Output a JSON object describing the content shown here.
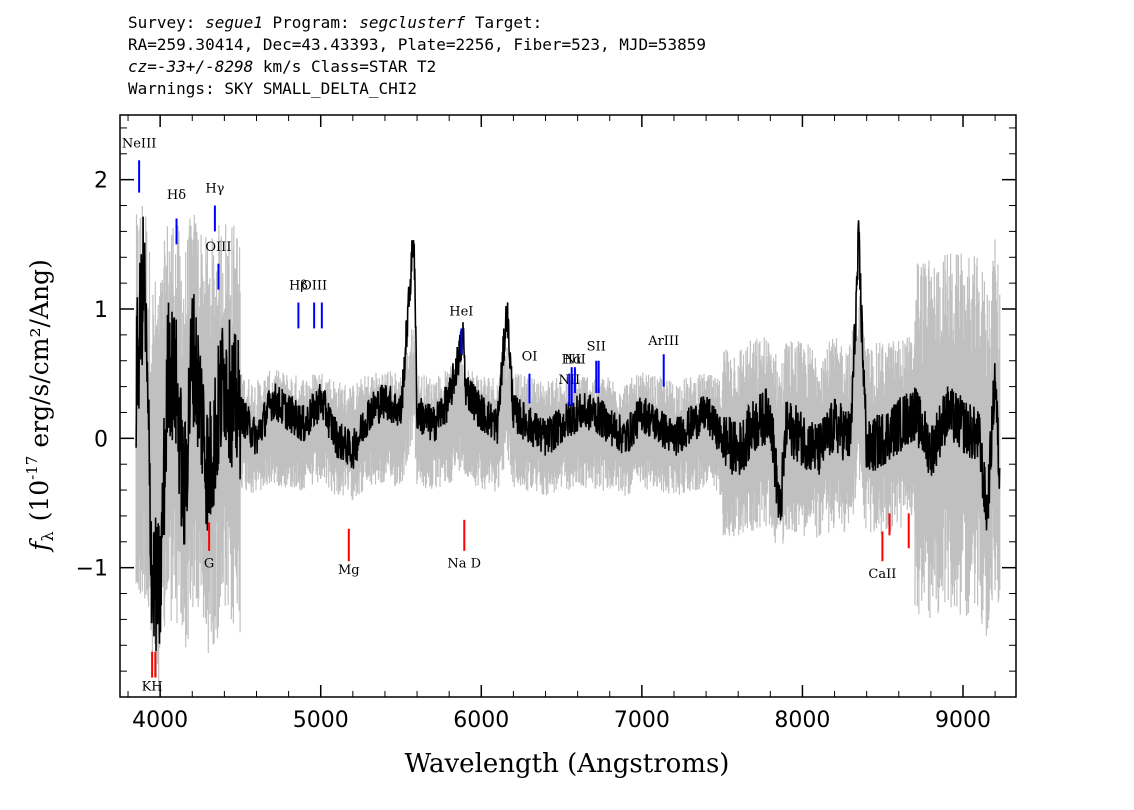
{
  "header": {
    "survey_label": "Survey:",
    "survey": "segue1",
    "program_label": "Program:",
    "program": "segclusterf",
    "target_label": "Target:",
    "line2": "RA=259.30414, Dec=43.43393, Plate=2256, Fiber=523, MJD=53859",
    "cz_label": "cz=",
    "cz_value": "-33+/-8298",
    "cz_units": "km/s",
    "class_text": "Class=STAR T2",
    "warnings": "Warnings: SKY SMALL_DELTA_CHI2"
  },
  "chart_data": {
    "type": "line",
    "xlabel": "Wavelength (Angstroms)",
    "ylabel_prefix": "f",
    "ylabel_sub": "λ",
    "ylabel_rest": "(10",
    "ylabel_exp": "-17",
    "ylabel_units": "erg/s/cm²/Ang)",
    "xlim": [
      3750,
      9330
    ],
    "ylim": [
      -2.0,
      2.5
    ],
    "xticks": [
      4000,
      5000,
      6000,
      7000,
      8000,
      9000
    ],
    "xtick_labels": [
      "4000",
      "5000",
      "6000",
      "7000",
      "8000",
      "9000"
    ],
    "yticks": [
      -1,
      0,
      1,
      2
    ],
    "ytick_labels": [
      "−1",
      "0",
      "1",
      "2"
    ],
    "colors": {
      "flux": "#000000",
      "error": "#c0c0c0",
      "emission": "#0000ff",
      "absorption": "#ff0000"
    },
    "series": [
      {
        "name": "",
        "x": [
          3850,
          3900,
          3950,
          4000,
          4050,
          4100,
          4150,
          4200,
          4250,
          4300,
          4350,
          4400,
          4450,
          4500,
          4600,
          4700,
          4800,
          4900,
          5000,
          5100,
          5200,
          5300,
          5400,
          5500,
          5580,
          5600,
          5700,
          5800,
          5890,
          5900,
          6000,
          6100,
          6160,
          6200,
          6300,
          6400,
          6500,
          6600,
          6700,
          6800,
          6900,
          7000,
          7100,
          7200,
          7300,
          7400,
          7500,
          7600,
          7700,
          7800,
          7860,
          7900,
          8000,
          8100,
          8200,
          8300,
          8350,
          8400,
          8500,
          8600,
          8700,
          8800,
          8900,
          9000,
          9100,
          9150,
          9200,
          9230
        ],
        "values": [
          0.4,
          1.3,
          -1.1,
          -1.2,
          0.6,
          0.4,
          -0.5,
          0.7,
          0.3,
          -0.3,
          0.1,
          0.5,
          0.3,
          0.2,
          0.0,
          0.3,
          0.2,
          0.1,
          0.3,
          0.0,
          -0.1,
          0.2,
          0.3,
          0.2,
          1.6,
          0.2,
          0.1,
          0.3,
          0.8,
          0.4,
          0.2,
          0.1,
          1.0,
          0.2,
          0.1,
          0.0,
          0.1,
          0.2,
          0.2,
          0.1,
          0.0,
          0.2,
          0.1,
          0.0,
          0.1,
          0.2,
          0.0,
          -0.1,
          0.1,
          0.2,
          -0.6,
          0.1,
          0.0,
          -0.1,
          0.1,
          0.0,
          1.5,
          -0.1,
          0.0,
          0.1,
          0.2,
          -0.1,
          0.2,
          0.1,
          0.0,
          -0.6,
          0.5,
          -0.4
        ]
      }
    ],
    "emission_lines": [
      {
        "label": "NeIII",
        "x": 3869,
        "y_label": 2.25,
        "y_tick": [
          1.9,
          2.15
        ]
      },
      {
        "label": "Hδ",
        "x": 4102,
        "y_label": 1.85,
        "y_tick": [
          1.5,
          1.7
        ]
      },
      {
        "label": "Hγ",
        "x": 4341,
        "y_label": 1.9,
        "y_tick": [
          1.6,
          1.8
        ]
      },
      {
        "label": "OIII",
        "x": 4363,
        "y_label": 1.45,
        "y_tick": [
          1.15,
          1.35
        ]
      },
      {
        "label": "Hβ",
        "x": 4861,
        "y_label": 1.15,
        "y_tick": [
          0.85,
          1.05
        ]
      },
      {
        "label": "OIII",
        "x": 4959,
        "y_label": 1.15,
        "y_tick": [
          0.85,
          1.05
        ]
      },
      {
        "label": "",
        "x": 5007,
        "y_label": 1.15,
        "y_tick": [
          0.85,
          1.05
        ]
      },
      {
        "label": "HeI",
        "x": 5876,
        "y_label": 0.95,
        "y_tick": [
          0.65,
          0.85
        ]
      },
      {
        "label": "OI",
        "x": 6300,
        "y_label": 0.6,
        "y_tick": [
          0.27,
          0.5
        ]
      },
      {
        "label": "NII",
        "x": 6548,
        "y_label": 0.42,
        "y_tick": [
          0.25,
          0.5
        ]
      },
      {
        "label": "Hα",
        "x": 6563,
        "y_label": 0.58,
        "y_tick": [
          0.25,
          0.55
        ]
      },
      {
        "label": "NII",
        "x": 6583,
        "y_label": 0.58,
        "y_tick": [
          0.35,
          0.55
        ]
      },
      {
        "label": "SII",
        "x": 6716,
        "y_label": 0.68,
        "y_tick": [
          0.35,
          0.6
        ]
      },
      {
        "label": "",
        "x": 6731,
        "y_label": 0.68,
        "y_tick": [
          0.35,
          0.6
        ]
      },
      {
        "label": "ArIII",
        "x": 7136,
        "y_label": 0.72,
        "y_tick": [
          0.4,
          0.65
        ]
      }
    ],
    "absorption_lines": [
      {
        "label": "KH",
        "x": 3950,
        "y_label": -1.95,
        "y_tick": [
          -1.85,
          -1.65
        ]
      },
      {
        "label": "",
        "x": 3970,
        "y_label": -1.95,
        "y_tick": [
          -1.85,
          -1.65
        ]
      },
      {
        "label": "G",
        "x": 4305,
        "y_label": -1.0,
        "y_tick": [
          -0.87,
          -0.65
        ]
      },
      {
        "label": "Mg",
        "x": 5175,
        "y_label": -1.05,
        "y_tick": [
          -0.95,
          -0.7
        ]
      },
      {
        "label": "Na D",
        "x": 5894,
        "y_label": -1.0,
        "y_tick": [
          -0.87,
          -0.63
        ]
      },
      {
        "label": "CaII",
        "x": 8498,
        "y_label": -1.08,
        "y_tick": [
          -0.95,
          -0.72
        ]
      },
      {
        "label": "",
        "x": 8542,
        "y_label": -1.08,
        "y_tick": [
          -0.75,
          -0.58
        ]
      },
      {
        "label": "",
        "x": 8662,
        "y_label": -1.08,
        "y_tick": [
          -0.85,
          -0.58
        ]
      }
    ]
  }
}
